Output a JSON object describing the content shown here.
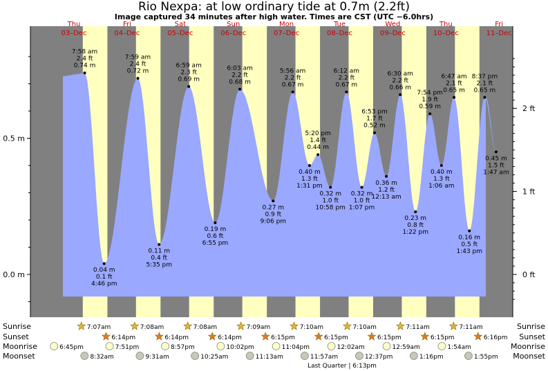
{
  "title": "Rio Nexpa: at low  ordinary tide at 0.7m (2.2ft)",
  "subtitle": "Image captured 34 minutes after high water. Times are CST (UTC −6.0hrs)",
  "colors": {
    "night": "#808080",
    "day": "#ffffc0",
    "water": "#9aa8ff",
    "day_label": "#cc0000"
  },
  "days": [
    {
      "dow": "Thu",
      "date": "03–Dec"
    },
    {
      "dow": "Fri",
      "date": "04–Dec"
    },
    {
      "dow": "Sat",
      "date": "05–Dec"
    },
    {
      "dow": "Sun",
      "date": "06–Dec"
    },
    {
      "dow": "Mon",
      "date": "07–Dec"
    },
    {
      "dow": "Tue",
      "date": "08–Dec"
    },
    {
      "dow": "Wed",
      "date": "09–Dec"
    },
    {
      "dow": "Thu",
      "date": "10–Dec"
    },
    {
      "dow": "Fri",
      "date": "11–Dec"
    }
  ],
  "chart_data": {
    "type": "area",
    "title": "Rio Nexpa: at low  ordinary tide at 0.7m (2.2ft)",
    "y_unit_left": "m",
    "y_unit_right": "ft",
    "left_ticks": [
      "0.5 m",
      "0.0 m"
    ],
    "right_ticks": [
      "2 ft",
      "1 ft",
      "0 ft"
    ],
    "ylim_m": [
      -0.12,
      0.85
    ],
    "series": [
      {
        "points": [
          {
            "day": 0,
            "time": "7:58 am",
            "m": 0.74,
            "m_label": "0.74 m",
            "ft_label": "2.4 ft",
            "kind": "high"
          },
          {
            "day": 0,
            "time": "4:46 pm",
            "m": 0.04,
            "m_label": "0.04 m",
            "ft_label": "0.1 ft",
            "kind": "low"
          },
          {
            "day": 1,
            "time": "7:59 am",
            "m": 0.72,
            "m_label": "0.72 m",
            "ft_label": "2.4 ft",
            "kind": "high"
          },
          {
            "day": 1,
            "time": "5:35 pm",
            "m": 0.11,
            "m_label": "0.11 m",
            "ft_label": "0.4 ft",
            "kind": "low"
          },
          {
            "day": 2,
            "time": "6:59 am",
            "m": 0.69,
            "m_label": "0.69 m",
            "ft_label": "2.3 ft",
            "kind": "high"
          },
          {
            "day": 2,
            "time": "6:55 pm",
            "m": 0.19,
            "m_label": "0.19 m",
            "ft_label": "0.6 ft",
            "kind": "low"
          },
          {
            "day": 3,
            "time": "6:03 am",
            "m": 0.68,
            "m_label": "0.68 m",
            "ft_label": "2.2 ft",
            "kind": "high"
          },
          {
            "day": 3,
            "time": "9:06 pm",
            "m": 0.27,
            "m_label": "0.27 m",
            "ft_label": "0.9 ft",
            "kind": "low"
          },
          {
            "day": 4,
            "time": "5:56 am",
            "m": 0.67,
            "m_label": "0.67 m",
            "ft_label": "2.2 ft",
            "kind": "high"
          },
          {
            "day": 4,
            "time": "1:31 pm",
            "m": 0.4,
            "m_label": "0.40 m",
            "ft_label": "1.3 ft",
            "kind": "low"
          },
          {
            "day": 4,
            "time": "5:20 pm",
            "m": 0.44,
            "m_label": "0.44 m",
            "ft_label": "1.4 ft",
            "kind": "high"
          },
          {
            "day": 4,
            "time": "10:58 pm",
            "m": 0.32,
            "m_label": "0.32 m",
            "ft_label": "1.0 ft",
            "kind": "low"
          },
          {
            "day": 5,
            "time": "6:12 am",
            "m": 0.67,
            "m_label": "0.67 m",
            "ft_label": "2.2 ft",
            "kind": "high"
          },
          {
            "day": 5,
            "time": "1:07 pm",
            "m": 0.32,
            "m_label": "0.32 m",
            "ft_label": "1.0 ft",
            "kind": "low"
          },
          {
            "day": 5,
            "time": "6:53 pm",
            "m": 0.52,
            "m_label": "0.52 m",
            "ft_label": "1.7 ft",
            "kind": "high"
          },
          {
            "day": 6,
            "time": "12:13 am",
            "m": 0.36,
            "m_label": "0.36 m",
            "ft_label": "1.2 ft",
            "kind": "low"
          },
          {
            "day": 6,
            "time": "6:30 am",
            "m": 0.66,
            "m_label": "0.66 m",
            "ft_label": "2.2 ft",
            "kind": "high"
          },
          {
            "day": 6,
            "time": "1:22 pm",
            "m": 0.23,
            "m_label": "0.23 m",
            "ft_label": "0.8 ft",
            "kind": "low"
          },
          {
            "day": 6,
            "time": "7:54 pm",
            "m": 0.59,
            "m_label": "0.59 m",
            "ft_label": "1.9 ft",
            "kind": "high"
          },
          {
            "day": 7,
            "time": "1:06 am",
            "m": 0.4,
            "m_label": "0.40 m",
            "ft_label": "1.3 ft",
            "kind": "low"
          },
          {
            "day": 7,
            "time": "6:47 am",
            "m": 0.65,
            "m_label": "0.65 m",
            "ft_label": "2.1 ft",
            "kind": "high"
          },
          {
            "day": 7,
            "time": "1:43 pm",
            "m": 0.16,
            "m_label": "0.16 m",
            "ft_label": "0.5 ft",
            "kind": "low"
          },
          {
            "day": 7,
            "time": "8:37 pm",
            "m": 0.65,
            "m_label": "0.65 m",
            "ft_label": "2.1 ft",
            "kind": "high"
          },
          {
            "day": 8,
            "time": "1:47 am",
            "m": 0.45,
            "m_label": "0.45 m",
            "ft_label": "1.5 ft",
            "kind": "low"
          }
        ]
      }
    ]
  },
  "astro": {
    "row_labels": [
      "Sunrise",
      "Sunset",
      "Moonrise",
      "Moonset"
    ],
    "sunrise": [
      "7:07am",
      "7:08am",
      "7:08am",
      "7:09am",
      "7:10am",
      "7:10am",
      "7:11am",
      "7:11am"
    ],
    "sunset": [
      "6:14pm",
      "6:14pm",
      "6:14pm",
      "6:15pm",
      "6:15pm",
      "6:15pm",
      "6:15pm",
      "6:16pm"
    ],
    "moonrise": [
      {
        "day": -1,
        "time": "6:45pm"
      },
      {
        "day": 0,
        "time": "7:51pm"
      },
      {
        "day": 1,
        "time": "8:57pm"
      },
      {
        "day": 2,
        "time": "10:02pm"
      },
      {
        "day": 3,
        "time": "11:04pm"
      },
      {
        "day": 5,
        "time": "12:02am"
      },
      {
        "day": 6,
        "time": "12:59am"
      },
      {
        "day": 7,
        "time": "1:54am"
      }
    ],
    "moonset": [
      {
        "day": 0,
        "time": "8:32am"
      },
      {
        "day": 1,
        "time": "9:31am"
      },
      {
        "day": 2,
        "time": "10:25am"
      },
      {
        "day": 3,
        "time": "11:13am"
      },
      {
        "day": 4,
        "time": "11:57am"
      },
      {
        "day": 5,
        "time": "12:37pm"
      },
      {
        "day": 6,
        "time": "1:16pm"
      },
      {
        "day": 7,
        "time": "1:55pm"
      }
    ],
    "moon_phase": "Last Quarter | 6:13pm"
  }
}
